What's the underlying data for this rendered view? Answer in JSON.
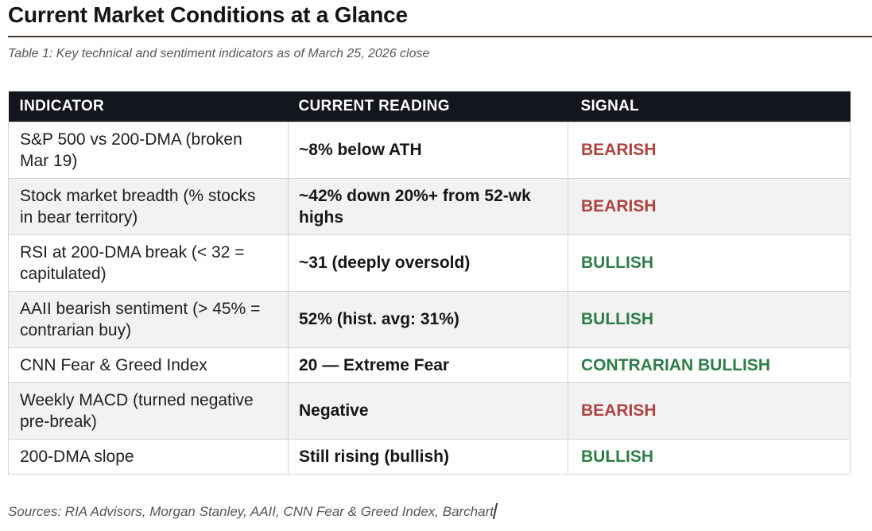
{
  "page": {
    "title": "Current Market Conditions at a Glance",
    "caption": "Table 1: Key technical and sentiment indicators as of March 25, 2026 close",
    "sources": "Sources: RIA Advisors, Morgan Stanley, AAII, CNN Fear & Greed Index, Barchart"
  },
  "colors": {
    "header_bg": "#14161d",
    "bearish_red": "#b04341",
    "bullish_green": "#2e7d46",
    "row_stripe": "#f2f2f2",
    "cell_border": "#d4d4d4",
    "title_rule": "#473a33",
    "muted_text": "#575757"
  },
  "table": {
    "columns": [
      "INDICATOR",
      "CURRENT READING",
      "SIGNAL"
    ],
    "rows": [
      {
        "indicator": "S&P 500 vs 200-DMA (broken Mar 19)",
        "reading": "~8% below ATH",
        "signal": "BEARISH",
        "signal_type": "bearish"
      },
      {
        "indicator": "Stock market breadth (% stocks in bear territory)",
        "reading": "~42% down 20%+ from 52-wk highs",
        "signal": "BEARISH",
        "signal_type": "bearish"
      },
      {
        "indicator": "RSI at 200-DMA break (< 32 = capitulated)",
        "reading": "~31 (deeply oversold)",
        "signal": "BULLISH",
        "signal_type": "bullish"
      },
      {
        "indicator": "AAII bearish sentiment (> 45% = contrarian buy)",
        "reading": "52% (hist. avg: 31%)",
        "signal": "BULLISH",
        "signal_type": "bullish"
      },
      {
        "indicator": "CNN Fear & Greed Index",
        "reading": "20 — Extreme Fear",
        "signal": "CONTRARIAN BULLISH",
        "signal_type": "bullish"
      },
      {
        "indicator": "Weekly MACD (turned negative pre-break)",
        "reading": "Negative",
        "signal": "BEARISH",
        "signal_type": "bearish"
      },
      {
        "indicator": "200-DMA slope",
        "reading": "Still rising (bullish)",
        "signal": "BULLISH",
        "signal_type": "bullish"
      }
    ]
  }
}
